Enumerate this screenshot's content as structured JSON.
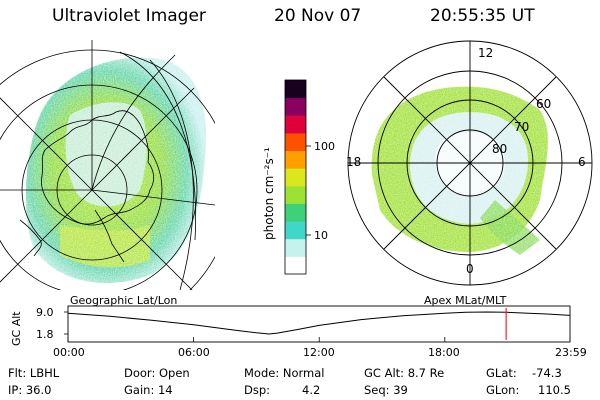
{
  "header": {
    "title": "Ultraviolet Imager",
    "date": "20 Nov 07",
    "time": "20:55:35 UT"
  },
  "colorbar": {
    "unit_label": "photon cm⁻²s⁻¹",
    "tick_labels": [
      "100",
      "10"
    ]
  },
  "panels": {
    "left_label": "Geographic Lat/Lon",
    "right_label": "Apex  MLat/MLT",
    "mlt_labels": [
      "12",
      "18",
      "6",
      "0"
    ],
    "mlat_labels": [
      "60",
      "70",
      "80"
    ]
  },
  "altitude_plot": {
    "ylabel": "GC Alt",
    "ytick_labels": [
      "9.0",
      "1.8"
    ],
    "xtick_labels": [
      "00:00",
      "06:00",
      "12:00",
      "18:00",
      "23:59"
    ]
  },
  "info": {
    "flt": "Flt: LBHL",
    "ip": "IP: 36.0",
    "door": "Door: Open",
    "gain": "Gain: 14",
    "mode": "Mode: Normal",
    "dsp_label": "Dsp:",
    "dsp_value": "4.2",
    "gcalt": "GC Alt: 8.7 Re",
    "seq": "Seq: 39",
    "glat_label": "GLat:",
    "glat_value": "-74.3",
    "glon_label": "GLon:",
    "glon_value": "110.5"
  },
  "chart_data": {
    "type": "line",
    "ylabel": "GC Alt",
    "y_ticks": [
      1.8,
      9.0
    ],
    "ylim": [
      1.8,
      9.0
    ],
    "x_ticks": [
      "00:00",
      "06:00",
      "12:00",
      "18:00",
      "23:59"
    ],
    "x": [
      0,
      2,
      4,
      6,
      8,
      9,
      9.6,
      10,
      11,
      12,
      14,
      16,
      18,
      19,
      20,
      21,
      22,
      23,
      23.98
    ],
    "y": [
      8.6,
      7.6,
      6.3,
      4.8,
      3.0,
      2.2,
      1.8,
      2.1,
      3.3,
      4.6,
      6.5,
      7.8,
      8.6,
      8.9,
      9.0,
      8.9,
      8.6,
      8.3,
      7.9
    ],
    "current_time_marker": 20.93,
    "colors": {
      "marker": "#ff2020",
      "line": "#000000"
    },
    "colorbar_scale": "log",
    "colorbar_colors": [
      "#ffffff",
      "#c6f2ee",
      "#40d6c8",
      "#3fd07a",
      "#9be234",
      "#d9e71c",
      "#ffa000",
      "#ff5000",
      "#e0003a",
      "#8a0060",
      "#180020"
    ]
  }
}
